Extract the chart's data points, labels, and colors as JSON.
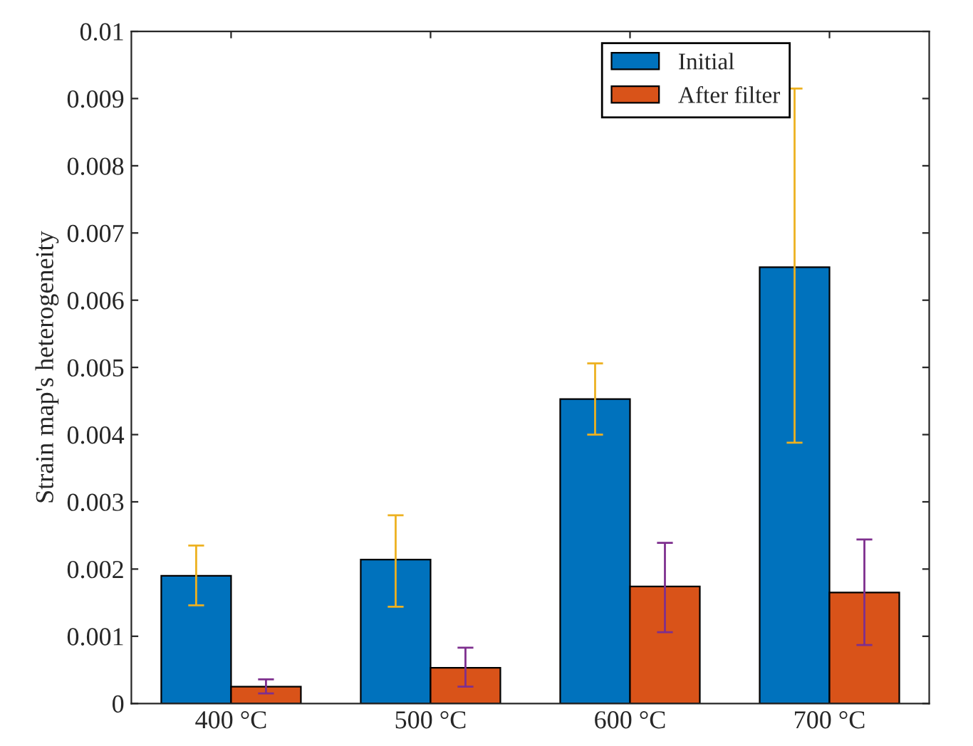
{
  "chart_data": {
    "type": "bar",
    "ylabel": "Strain map's heterogeneity",
    "categories": [
      "400 °C",
      "500 °C",
      "600 °C",
      "700 °C"
    ],
    "series": [
      {
        "name": "Initial",
        "color": "#0072bd",
        "values": [
          0.0019,
          0.00214,
          0.00453,
          0.00649
        ],
        "errors": [
          [
            0.00146,
            0.00235
          ],
          [
            0.00144,
            0.0028
          ],
          [
            0.004,
            0.00506
          ],
          [
            0.00388,
            0.00915
          ]
        ]
      },
      {
        "name": "After filter",
        "color": "#d95319",
        "values": [
          0.00025,
          0.00053,
          0.00174,
          0.00165
        ],
        "errors": [
          [
            0.00015,
            0.00036
          ],
          [
            0.00025,
            0.00083
          ],
          [
            0.00106,
            0.00239
          ],
          [
            0.00087,
            0.00244
          ]
        ]
      }
    ],
    "ylim": [
      0,
      0.01
    ],
    "yticks": [
      0,
      0.001,
      0.002,
      0.003,
      0.004,
      0.005,
      0.006,
      0.007,
      0.008,
      0.009,
      0.01
    ],
    "grid": false,
    "legend": "top right"
  }
}
